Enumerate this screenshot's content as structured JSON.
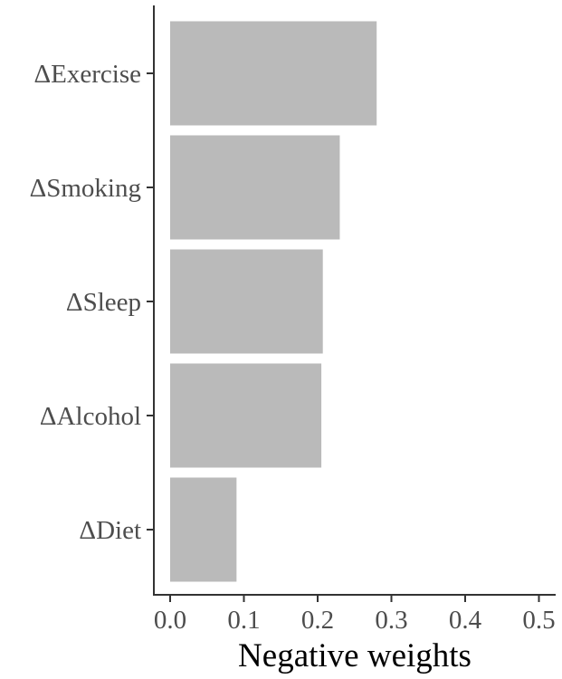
{
  "chart_data": {
    "type": "bar",
    "orientation": "horizontal",
    "categories": [
      "ΔExercise",
      "ΔSmoking",
      "ΔSleep",
      "ΔAlcohol",
      "ΔDiet"
    ],
    "values": [
      0.28,
      0.23,
      0.207,
      0.205,
      0.09
    ],
    "xlabel": "Negative weights",
    "ylabel": "",
    "xlim": [
      0,
      0.5
    ],
    "xticks": [
      "0.0",
      "0.1",
      "0.2",
      "0.3",
      "0.4",
      "0.5"
    ],
    "grid": false,
    "bar_color": "#bababa",
    "axis_color": "#333333"
  }
}
